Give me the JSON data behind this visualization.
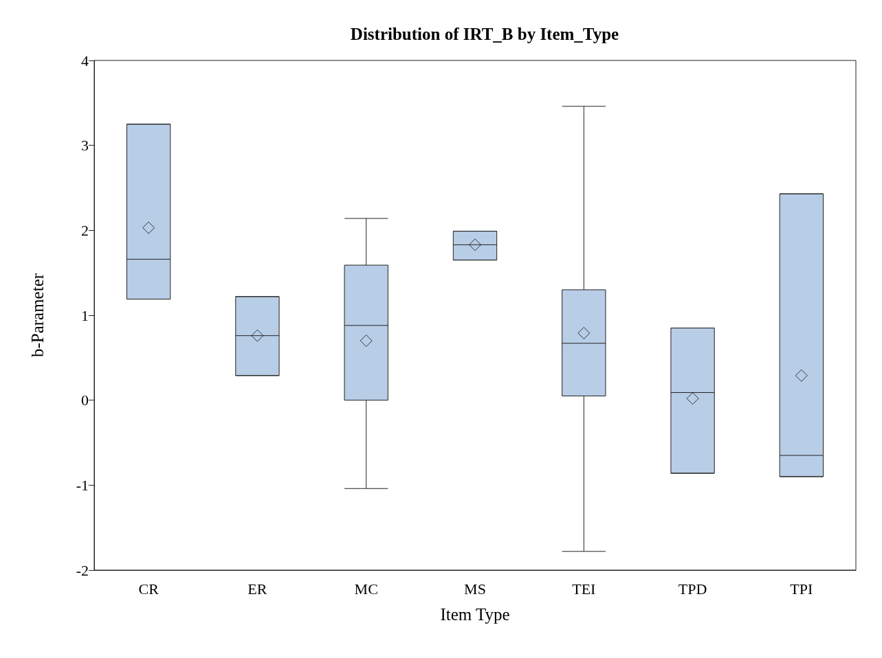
{
  "chart_data": {
    "type": "box",
    "title": "Distribution of IRT_B by Item_Type",
    "xlabel": "Item Type",
    "ylabel": "b-Parameter",
    "categories": [
      "CR",
      "ER",
      "MC",
      "MS",
      "TEI",
      "TPD",
      "TPI"
    ],
    "color": "#b8cde6",
    "marker": "diamond",
    "boxes": [
      {
        "low": 1.19,
        "q1": 1.19,
        "median": 1.66,
        "q3": 3.25,
        "high": 3.25,
        "mean": 2.03
      },
      {
        "low": 0.29,
        "q1": 0.29,
        "median": 0.76,
        "q3": 1.22,
        "high": 1.22,
        "mean": 0.76
      },
      {
        "low": -1.04,
        "q1": 0,
        "median": 0.88,
        "q3": 1.59,
        "high": 2.14,
        "mean": 0.7
      },
      {
        "low": 1.65,
        "q1": 1.65,
        "median": 1.83,
        "q3": 1.99,
        "high": 1.99,
        "mean": 1.83
      },
      {
        "low": -1.78,
        "q1": 0.05,
        "median": 0.67,
        "q3": 1.3,
        "high": 3.46,
        "mean": 0.79
      },
      {
        "low": -0.86,
        "q1": -0.86,
        "median": 0.09,
        "q3": 0.85,
        "high": 0.85,
        "mean": 0.02
      },
      {
        "low": -0.9,
        "q1": -0.9,
        "median": -0.65,
        "q3": 2.43,
        "high": 2.43,
        "mean": 0.29
      }
    ],
    "ylim": [
      -2,
      4
    ],
    "yticks": [
      -2,
      -1,
      0,
      1,
      2,
      3,
      4
    ]
  }
}
